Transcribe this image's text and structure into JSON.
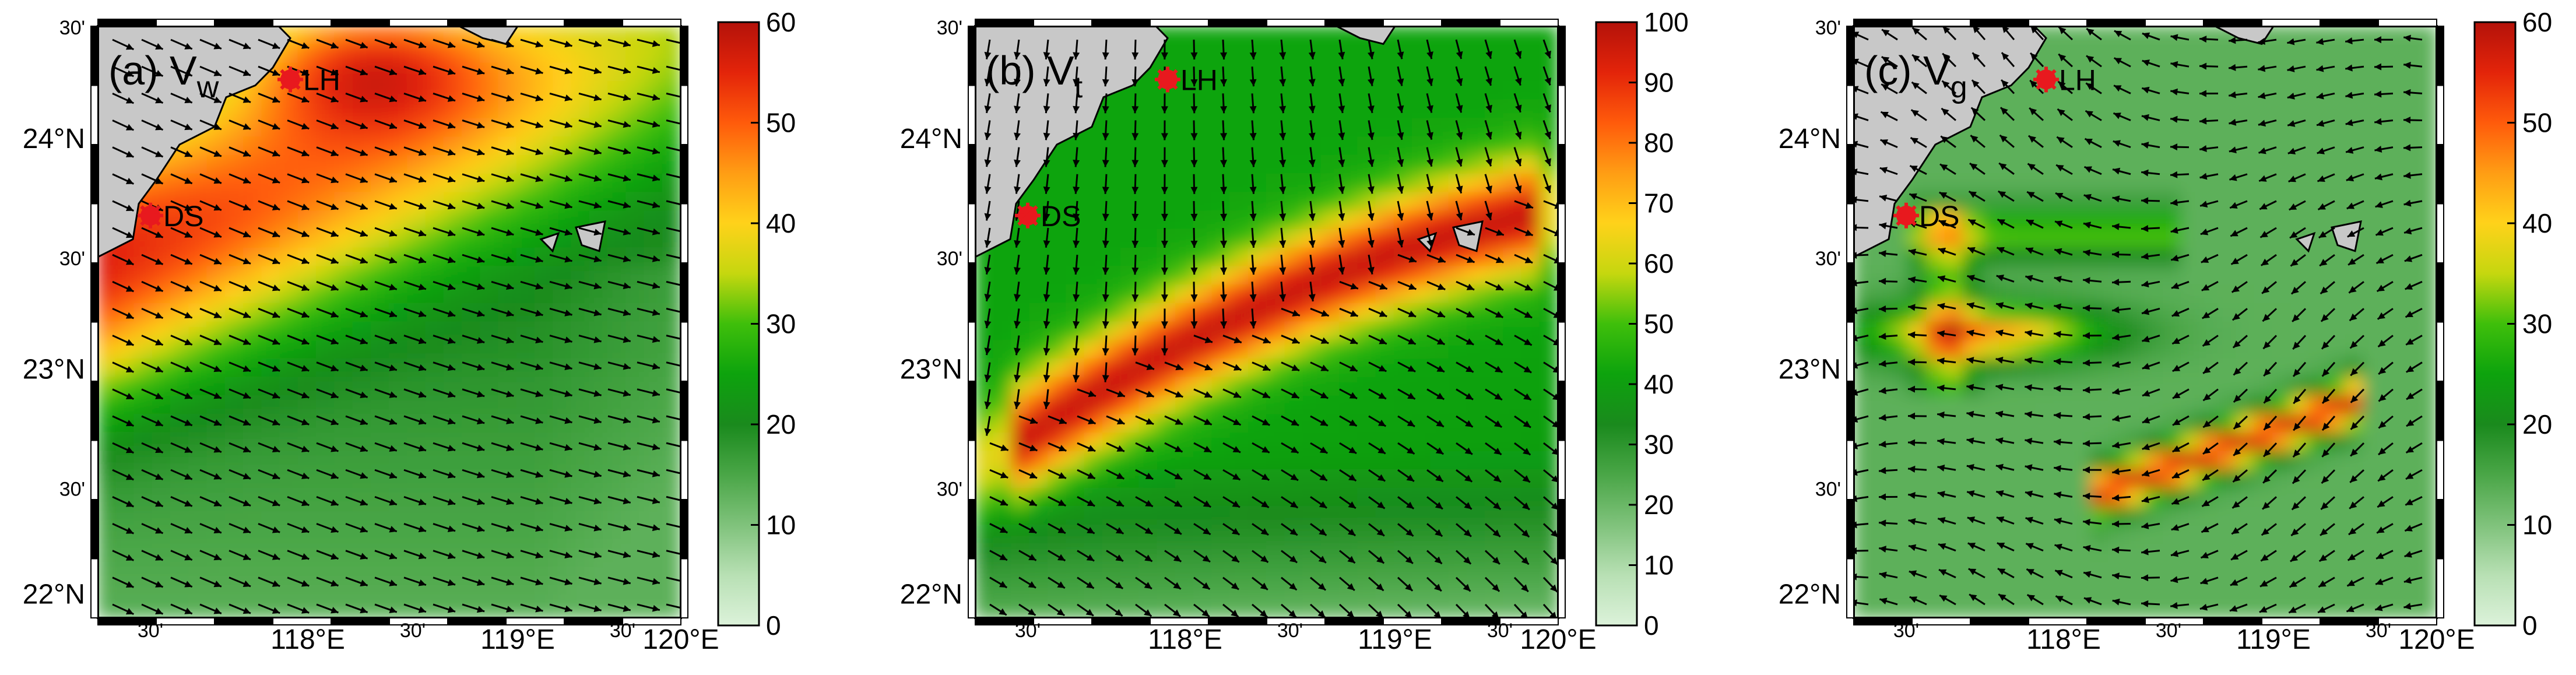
{
  "colorbar_stops": [
    "#dcf2da",
    "#b8e0b4",
    "#7fc27b",
    "#4aa647",
    "#1a8a1d",
    "#0da30d",
    "#3fbf0b",
    "#c5d70f",
    "#ffd21a",
    "#ff9d14",
    "#ff5b0b",
    "#e3240a",
    "#b4120a"
  ],
  "colors": {
    "land": "#c8c8c8",
    "arrow": "#000000",
    "station_marker": "#e8191e",
    "frame": "#000000"
  },
  "chart_data": [
    {
      "type": "heatmap",
      "panel": "a",
      "label_prefix": "(a) V",
      "label_subscript": "w",
      "variable": "Vw",
      "colorbar": {
        "min": 0,
        "max": 60,
        "ticks": [
          "0",
          "10",
          "20",
          "30",
          "40",
          "50",
          "60"
        ]
      },
      "x_major_ticks": [
        "118°E",
        "119°E",
        "120°E"
      ],
      "x_minor_ticks": [
        "30'",
        "30'",
        "30'"
      ],
      "y_major_ticks": [
        "22°N",
        "23°N",
        "24°N"
      ],
      "y_minor_ticks": [
        "30'",
        "30'",
        "30'"
      ],
      "xlim": [
        117.25,
        120.0
      ],
      "ylim": [
        21.9,
        24.5
      ],
      "stations": [
        {
          "name": "LH",
          "lon": 117.93,
          "lat": 24.38
        },
        {
          "name": "DS",
          "lon": 117.45,
          "lat": 23.67
        }
      ]
    },
    {
      "type": "heatmap",
      "panel": "b",
      "label_prefix": "(b) V",
      "label_subscript": "t",
      "variable": "Vt",
      "colorbar": {
        "min": 0,
        "max": 100,
        "ticks": [
          "0",
          "10",
          "20",
          "30",
          "40",
          "50",
          "60",
          "70",
          "80",
          "90",
          "100"
        ]
      },
      "x_major_ticks": [
        "118°E",
        "119°E",
        "120°E"
      ],
      "x_minor_ticks": [
        "30'",
        "30'",
        "30'"
      ],
      "y_major_ticks": [
        "22°N",
        "23°N",
        "24°N"
      ],
      "y_minor_ticks": [
        "30'",
        "30'",
        "30'"
      ],
      "xlim": [
        117.25,
        120.0
      ],
      "ylim": [
        21.9,
        24.5
      ],
      "stations": [
        {
          "name": "LH",
          "lon": 117.93,
          "lat": 24.38
        },
        {
          "name": "DS",
          "lon": 117.45,
          "lat": 23.67
        }
      ]
    },
    {
      "type": "heatmap",
      "panel": "c",
      "label_prefix": "(c) V",
      "label_subscript": "g",
      "variable": "Vg",
      "colorbar": {
        "min": 0,
        "max": 60,
        "ticks": [
          "0",
          "10",
          "20",
          "30",
          "40",
          "50",
          "60"
        ]
      },
      "x_major_ticks": [
        "118°E",
        "119°E",
        "120°E"
      ],
      "x_minor_ticks": [
        "30'",
        "30'",
        "30'"
      ],
      "y_major_ticks": [
        "22°N",
        "23°N",
        "24°N"
      ],
      "y_minor_ticks": [
        "30'",
        "30'",
        "30'"
      ],
      "xlim": [
        117.25,
        120.0
      ],
      "ylim": [
        21.9,
        24.5
      ],
      "stations": [
        {
          "name": "LH",
          "lon": 117.93,
          "lat": 24.38
        },
        {
          "name": "DS",
          "lon": 117.45,
          "lat": 23.67
        }
      ]
    }
  ]
}
